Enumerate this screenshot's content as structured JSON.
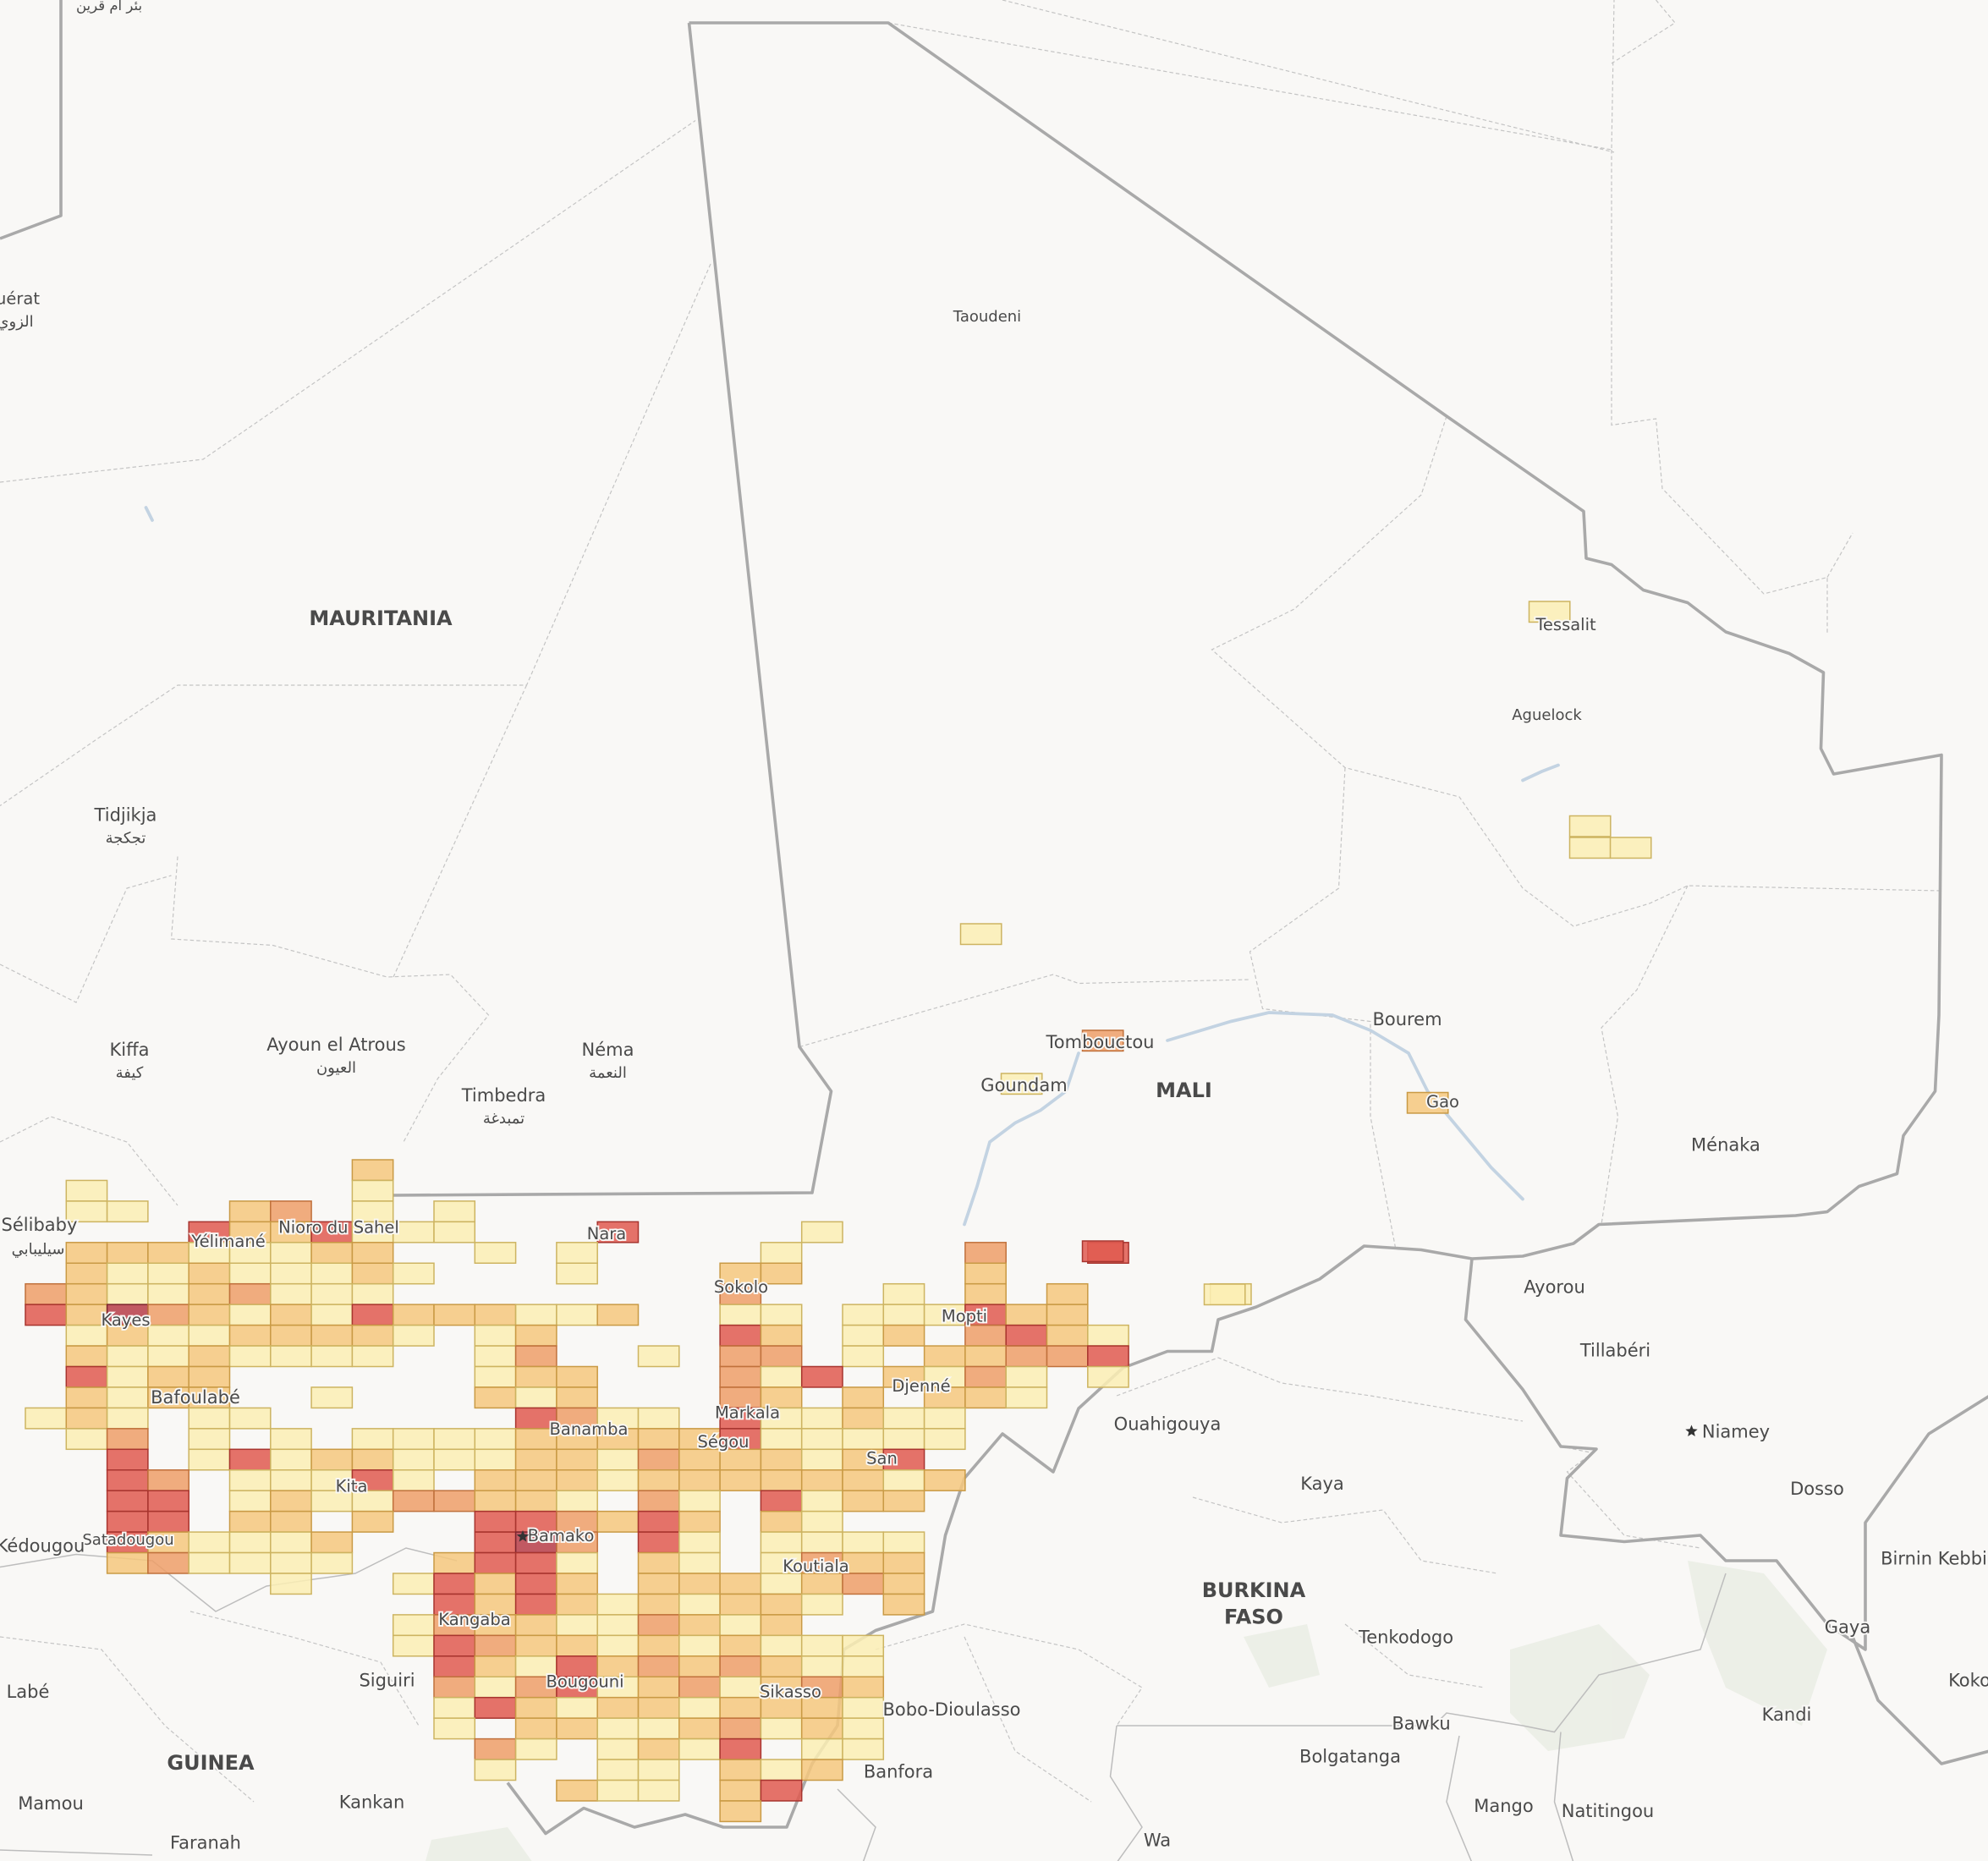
{
  "labels": [
    "بئر ام قرين",
    "uérat",
    "الزوي",
    "MAURITANIA",
    "Taoudeni",
    "Tessalit",
    "Aguelock",
    "Tidjikja",
    "تجكجة",
    "Kiffa",
    "كيفة",
    "Ayoun el Atrous",
    "العيون",
    "Néma",
    "النعمة",
    "Timbedra",
    "تمبدغة",
    "Tombouctou",
    "Goundam",
    "MALI",
    "Bourem",
    "Gao",
    "Ménaka",
    "Sélibaby",
    "سيليبابي",
    "Yélimané",
    "Nioro du Sahel",
    "Nara",
    "Sokolo",
    "Kayes",
    "Mopti",
    "Djenné",
    "Bafoulabé",
    "Markala",
    "Banamba",
    "Ségou",
    "San",
    "Kita",
    "Satadougou",
    "Kédougou",
    "Bamako",
    "Koutiala",
    "Kangaba",
    "Siguiri",
    "Bougouni",
    "Sikasso",
    "Labé",
    "GUINEA",
    "Kankan",
    "Mamou",
    "Faranah",
    "Bobo-Dioulasso",
    "Banfora",
    "Ouahigouya",
    "Kaya",
    "BURKINA",
    "FASO",
    "Tenkodogo",
    "Bawku",
    "Bolgatanga",
    "Mango",
    "Natitingou",
    "Wa",
    "Ayorou",
    "Tillabéri",
    "Niamey",
    "Dosso",
    "Birnin Kebbi",
    "Gaya",
    "Kandi",
    "Koko"
  ]
}
